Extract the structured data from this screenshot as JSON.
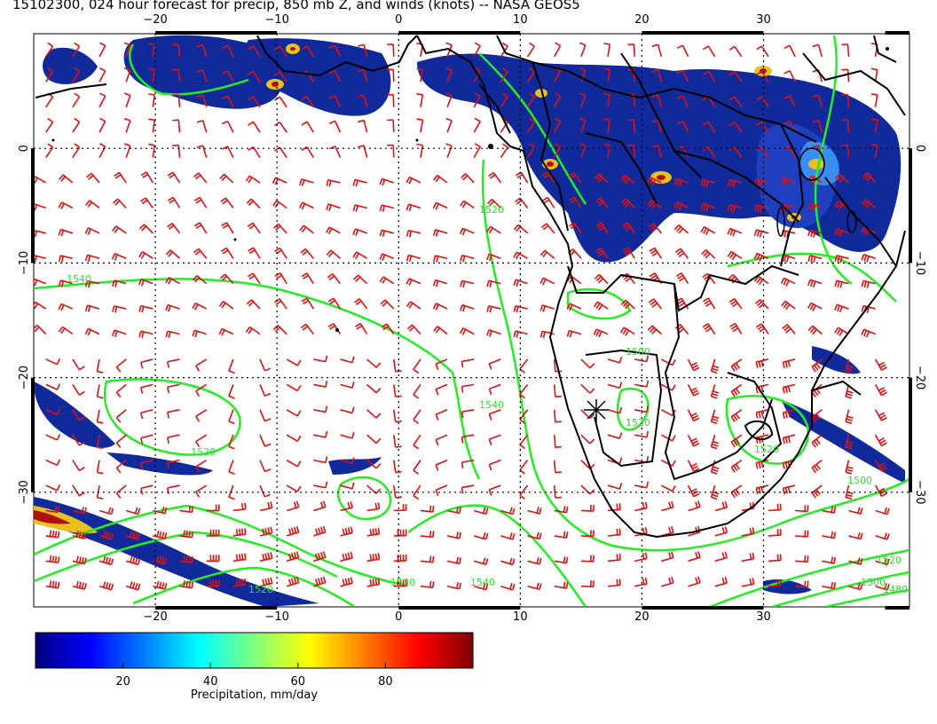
{
  "title": "15102300, 024 hour forecast for precip, 850 mb Z, and winds (knots) -- NASA GEOS5",
  "map": {
    "lon_range": [
      -30,
      42
    ],
    "lat_range": [
      -40,
      10
    ],
    "lon_ticks": [
      "−20",
      "−10",
      "0",
      "10",
      "20",
      "30"
    ],
    "lon_tick_values": [
      -20,
      -10,
      0,
      10,
      20,
      30
    ],
    "lat_ticks": [
      "0",
      "−10",
      "−20",
      "−30"
    ],
    "lat_tick_values": [
      0,
      -10,
      -20,
      -30
    ],
    "gridlines": "dotted",
    "colors": {
      "contour": "#22ee22",
      "wind_barb": "#e01010",
      "coast": "#000000",
      "precip_low": "#0b1e8c",
      "precip_mid": "#2a6adf",
      "precip_high": "#c01010"
    },
    "contour_labels": [
      "1540",
      "1520",
      "1500",
      "1520",
      "1540",
      "1520",
      "1500",
      "1520",
      "1500",
      "1520",
      "1540",
      "1520",
      "1500",
      "1480"
    ]
  },
  "colorbar": {
    "label": "Precipitation, mm/day",
    "ticks": [
      "20",
      "40",
      "60",
      "80"
    ],
    "tick_values": [
      20,
      40,
      60,
      80
    ],
    "range": [
      0,
      100
    ],
    "colors": [
      "#00007f",
      "#0000ff",
      "#007fff",
      "#00ffff",
      "#7fff7f",
      "#ffff00",
      "#ff7f00",
      "#ff0000",
      "#7f0000"
    ]
  }
}
